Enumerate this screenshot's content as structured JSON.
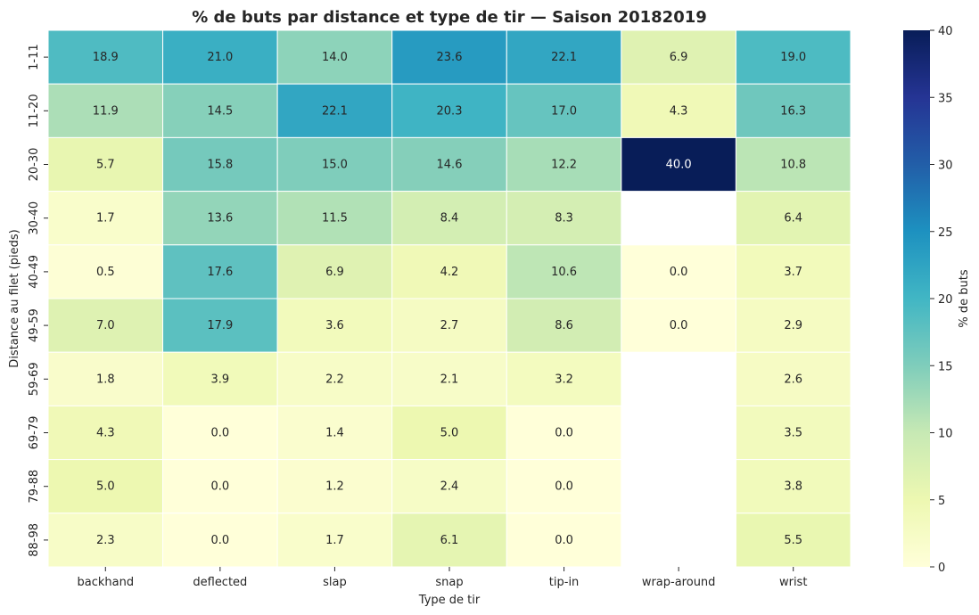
{
  "chart_data": {
    "type": "heatmap",
    "title": "% de buts par distance et type de tir — Saison 20182019",
    "xlabel": "Type de tir",
    "ylabel": "Distance au filet (pieds)",
    "x_categories": [
      "backhand",
      "deflected",
      "slap",
      "snap",
      "tip-in",
      "wrap-around",
      "wrist"
    ],
    "y_categories": [
      "1-11",
      "11-20",
      "20-30",
      "30-40",
      "40-49",
      "49-59",
      "59-69",
      "69-79",
      "79-88",
      "88-98"
    ],
    "values": [
      [
        18.9,
        21.0,
        14.0,
        23.6,
        22.1,
        6.9,
        19.0
      ],
      [
        11.9,
        14.5,
        22.1,
        20.3,
        17.0,
        4.3,
        16.3
      ],
      [
        5.7,
        15.8,
        15.0,
        14.6,
        12.2,
        40.0,
        10.8
      ],
      [
        1.7,
        13.6,
        11.5,
        8.4,
        8.3,
        null,
        6.4
      ],
      [
        0.5,
        17.6,
        6.9,
        4.2,
        10.6,
        0.0,
        3.7
      ],
      [
        7.0,
        17.9,
        3.6,
        2.7,
        8.6,
        0.0,
        2.9
      ],
      [
        1.8,
        3.9,
        2.2,
        2.1,
        3.2,
        null,
        2.6
      ],
      [
        4.3,
        0.0,
        1.4,
        5.0,
        0.0,
        null,
        3.5
      ],
      [
        5.0,
        0.0,
        1.2,
        2.4,
        0.0,
        null,
        3.8
      ],
      [
        2.3,
        0.0,
        1.7,
        6.1,
        0.0,
        null,
        5.5
      ]
    ],
    "colorbar": {
      "label": "% de buts",
      "range": [
        0,
        40
      ],
      "ticks": [
        0,
        5,
        10,
        15,
        20,
        25,
        30,
        35,
        40
      ],
      "colormap": "YlGnBu"
    },
    "grid": false
  }
}
